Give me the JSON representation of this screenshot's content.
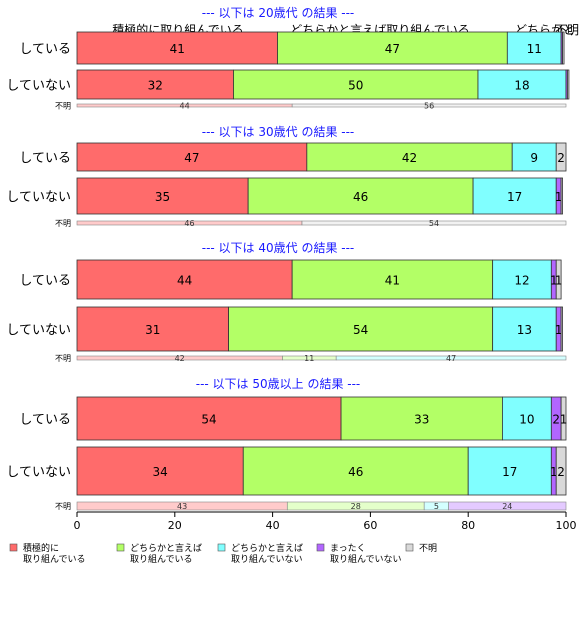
{
  "chart_data": {
    "type": "bar",
    "stacked": "horizontal-100",
    "xlim": [
      0,
      100
    ],
    "x_ticks": [
      "0",
      "20",
      "40",
      "60",
      "80",
      "100"
    ],
    "category_headers": [
      "積極的に取り組んでいる",
      "どちらかと言えば取り組んでいる",
      "どちらかと",
      "不明"
    ],
    "legend": {
      "position": "bottom-left",
      "items": [
        {
          "label_lines": [
            "積極的に",
            "取り組んでいる"
          ],
          "color": "#ff6b6b"
        },
        {
          "label_lines": [
            "どちらかと言えば",
            "取り組んでいる"
          ],
          "color": "#b3ff66"
        },
        {
          "label_lines": [
            "どちらかと言えば",
            "取り組んでいない"
          ],
          "color": "#80ffff"
        },
        {
          "label_lines": [
            "まったく",
            "取り組んでいない"
          ],
          "color": "#b266ff"
        },
        {
          "label_lines": [
            "不明"
          ],
          "color": "#d9d9d9"
        }
      ]
    },
    "colors": [
      "#ff6b6b",
      "#b3ff66",
      "#80ffff",
      "#b266ff",
      "#d9d9d9"
    ],
    "panels": [
      {
        "title": "--- 以下は 20歳代 の結果 ---",
        "rows": [
          {
            "label": "している",
            "values": [
              41,
              47,
              11,
              0.3,
              0.3
            ],
            "labels": [
              "41",
              "47",
              "11",
              "",
              ""
            ]
          },
          {
            "label": "していない",
            "values": [
              32,
              50,
              18,
              0.3,
              0.3
            ],
            "labels": [
              "32",
              "50",
              "18",
              "",
              ""
            ]
          }
        ],
        "unknown": {
          "label": "不明",
          "values": [
            44,
            0,
            0,
            0,
            56
          ],
          "labels": [
            "44",
            "",
            "",
            "",
            "56"
          ]
        }
      },
      {
        "title": "--- 以下は 30歳代 の結果 ---",
        "rows": [
          {
            "label": "している",
            "values": [
              47,
              42,
              9,
              0,
              2
            ],
            "labels": [
              "47",
              "42",
              "9",
              "",
              "2"
            ]
          },
          {
            "label": "していない",
            "values": [
              35,
              46,
              17,
              1,
              0.3
            ],
            "labels": [
              "35",
              "46",
              "17",
              "1",
              ""
            ]
          }
        ],
        "unknown": {
          "label": "不明",
          "values": [
            46,
            0,
            0,
            0,
            54
          ],
          "labels": [
            "46",
            "",
            "",
            "",
            "54"
          ]
        }
      },
      {
        "title": "--- 以下は 40歳代 の結果 ---",
        "rows": [
          {
            "label": "している",
            "values": [
              44,
              41,
              12,
              1,
              1
            ],
            "labels": [
              "44",
              "41",
              "12",
              "1",
              "1"
            ]
          },
          {
            "label": "していない",
            "values": [
              31,
              54,
              13,
              1,
              0.3
            ],
            "labels": [
              "31",
              "54",
              "13",
              "1",
              ""
            ]
          }
        ],
        "unknown": {
          "label": "不明",
          "values": [
            42,
            11,
            47,
            0,
            0
          ],
          "labels": [
            "42",
            "11",
            "47",
            "",
            ""
          ]
        }
      },
      {
        "title": "--- 以下は 50歳以上 の結果 ---",
        "rows": [
          {
            "label": "している",
            "values": [
              54,
              33,
              10,
              2,
              1
            ],
            "labels": [
              "54",
              "33",
              "10",
              "2",
              "1"
            ]
          },
          {
            "label": "していない",
            "values": [
              34,
              46,
              17,
              1,
              2
            ],
            "labels": [
              "34",
              "46",
              "17",
              "1",
              "2"
            ]
          }
        ],
        "unknown": {
          "label": "不明",
          "values": [
            43,
            28,
            5,
            24,
            0
          ],
          "labels": [
            "43",
            "28",
            "5",
            "24",
            ""
          ]
        }
      }
    ]
  }
}
